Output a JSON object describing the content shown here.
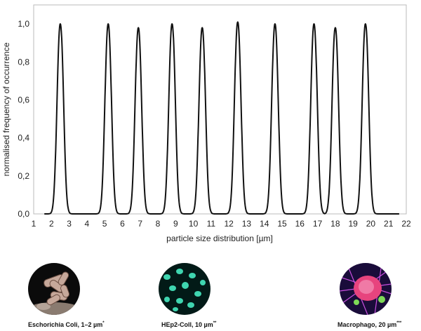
{
  "chart_data": {
    "type": "line",
    "xlabel": "particle size distribution [µm]",
    "ylabel": "normalised frequency of occurrence",
    "xlim": [
      1,
      22
    ],
    "ylim": [
      0,
      1.1
    ],
    "xticks": [
      "1",
      "2",
      "3",
      "4",
      "5",
      "6",
      "7",
      "8",
      "9",
      "10",
      "11",
      "12",
      "13",
      "14",
      "15",
      "16",
      "17",
      "18",
      "19",
      "20",
      "21",
      "22"
    ],
    "yticks": [
      "0,0",
      "0,2",
      "0,4",
      "0,6",
      "0,8",
      "1,0"
    ],
    "ytick_values": [
      0,
      0.2,
      0.4,
      0.6,
      0.8,
      1.0
    ],
    "grid": false,
    "peaks": [
      {
        "x": 2.5,
        "height": 1.0
      },
      {
        "x": 5.2,
        "height": 1.0
      },
      {
        "x": 6.9,
        "height": 0.98
      },
      {
        "x": 8.8,
        "height": 1.0
      },
      {
        "x": 10.5,
        "height": 0.98
      },
      {
        "x": 12.5,
        "height": 1.01
      },
      {
        "x": 14.6,
        "height": 1.0
      },
      {
        "x": 16.8,
        "height": 1.0
      },
      {
        "x": 18.0,
        "height": 0.98
      },
      {
        "x": 19.7,
        "height": 1.0
      }
    ]
  },
  "captions": [
    {
      "text": "Eschorichia Coli, 1–2 µm",
      "mark": "*"
    },
    {
      "text": "HEp2-Coll, 10 µm",
      "mark": "**"
    },
    {
      "text": "Macrophago, 20 µm",
      "mark": "***"
    }
  ]
}
